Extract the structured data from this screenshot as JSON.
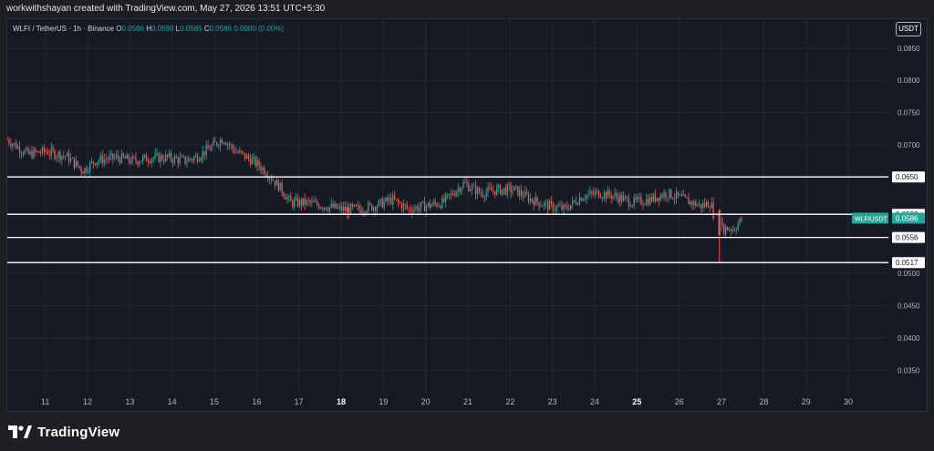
{
  "header": {
    "caption": "workwithshayan created with TradingView.com, May 27, 2026 13:51 UTC+5:30"
  },
  "legend": {
    "symbol": "WLFI / TetherUS · 1h · Binance",
    "o_label": "O",
    "o_value": "0.0586",
    "h_label": "H",
    "h_value": "0.0590",
    "l_label": "L",
    "l_value": "0.0585",
    "c_label": "C",
    "c_value": "0.0586",
    "change": "0.0000 (0.00%)"
  },
  "currency_button": "USDT",
  "footer": {
    "logo_text": "TradingView"
  },
  "colors": {
    "up": "#26a69a",
    "down": "#ef5350",
    "background": "#161a25",
    "grid": "#242834",
    "level_line": "#ffffff",
    "text": "#b2b5be"
  },
  "chart_data": {
    "type": "candlestick",
    "title": "",
    "xlabel": "",
    "ylabel": "",
    "ylim": [
      0.0315,
      0.0895
    ],
    "xlim": [
      10.1,
      30.95
    ],
    "x_ticks": [
      {
        "value": 11,
        "label": "11",
        "bold": false
      },
      {
        "value": 12,
        "label": "12",
        "bold": false
      },
      {
        "value": 13,
        "label": "13",
        "bold": false
      },
      {
        "value": 14,
        "label": "14",
        "bold": false
      },
      {
        "value": 15,
        "label": "15",
        "bold": false
      },
      {
        "value": 16,
        "label": "16",
        "bold": false
      },
      {
        "value": 17,
        "label": "17",
        "bold": false
      },
      {
        "value": 18,
        "label": "18",
        "bold": true
      },
      {
        "value": 19,
        "label": "19",
        "bold": false
      },
      {
        "value": 20,
        "label": "20",
        "bold": false
      },
      {
        "value": 21,
        "label": "21",
        "bold": false
      },
      {
        "value": 22,
        "label": "22",
        "bold": false
      },
      {
        "value": 23,
        "label": "23",
        "bold": false
      },
      {
        "value": 24,
        "label": "24",
        "bold": false
      },
      {
        "value": 25,
        "label": "25",
        "bold": true
      },
      {
        "value": 26,
        "label": "26",
        "bold": false
      },
      {
        "value": 27,
        "label": "27",
        "bold": false
      },
      {
        "value": 28,
        "label": "28",
        "bold": false
      },
      {
        "value": 29,
        "label": "29",
        "bold": false
      },
      {
        "value": 30,
        "label": "30",
        "bold": false
      }
    ],
    "y_ticks": [
      "0.0850",
      "0.0800",
      "0.0750",
      "0.0700",
      "0.0500",
      "0.0450",
      "0.0400",
      "0.0350"
    ],
    "levels": [
      {
        "value": 0.065,
        "label": "0.0650"
      },
      {
        "value": 0.0592,
        "label": "0.0592"
      },
      {
        "value": 0.0556,
        "label": "0.0556"
      },
      {
        "value": 0.0517,
        "label": "0.0517"
      }
    ],
    "last_price": {
      "symbol": "WLFIUSDT",
      "value": 0.0586,
      "label": "0.0586"
    },
    "path": [
      [
        10.1,
        0.0708
      ],
      [
        10.6,
        0.0685
      ],
      [
        11.0,
        0.069
      ],
      [
        11.5,
        0.0682
      ],
      [
        11.9,
        0.066
      ],
      [
        12.2,
        0.0676
      ],
      [
        12.7,
        0.068
      ],
      [
        13.1,
        0.0675
      ],
      [
        13.5,
        0.068
      ],
      [
        13.9,
        0.068
      ],
      [
        14.3,
        0.0675
      ],
      [
        14.6,
        0.0682
      ],
      [
        14.9,
        0.0695
      ],
      [
        15.2,
        0.071
      ],
      [
        15.5,
        0.069
      ],
      [
        15.9,
        0.0675
      ],
      [
        16.2,
        0.066
      ],
      [
        16.6,
        0.063
      ],
      [
        16.8,
        0.061
      ],
      [
        17.2,
        0.061
      ],
      [
        17.6,
        0.0605
      ],
      [
        18.0,
        0.06
      ],
      [
        18.4,
        0.06
      ],
      [
        18.8,
        0.0605
      ],
      [
        19.2,
        0.0615
      ],
      [
        19.6,
        0.06
      ],
      [
        20.0,
        0.0605
      ],
      [
        20.4,
        0.061
      ],
      [
        20.9,
        0.064
      ],
      [
        21.3,
        0.0625
      ],
      [
        21.7,
        0.063
      ],
      [
        22.1,
        0.063
      ],
      [
        22.5,
        0.0615
      ],
      [
        22.9,
        0.0605
      ],
      [
        23.3,
        0.06
      ],
      [
        23.7,
        0.062
      ],
      [
        24.1,
        0.0625
      ],
      [
        24.5,
        0.062
      ],
      [
        24.9,
        0.061
      ],
      [
        25.3,
        0.0615
      ],
      [
        25.7,
        0.0625
      ],
      [
        26.1,
        0.0615
      ],
      [
        26.5,
        0.0605
      ],
      [
        26.75,
        0.061
      ],
      [
        26.9,
        0.0565
      ],
      [
        27.1,
        0.057
      ],
      [
        27.3,
        0.057
      ],
      [
        27.5,
        0.0586
      ]
    ],
    "spikes": [
      {
        "x": 26.95,
        "high": 0.06,
        "low": 0.0517,
        "open": 0.0598,
        "close": 0.056
      },
      {
        "x": 18.15,
        "high": 0.0603,
        "low": 0.0585,
        "open": 0.06,
        "close": 0.0596
      }
    ]
  }
}
